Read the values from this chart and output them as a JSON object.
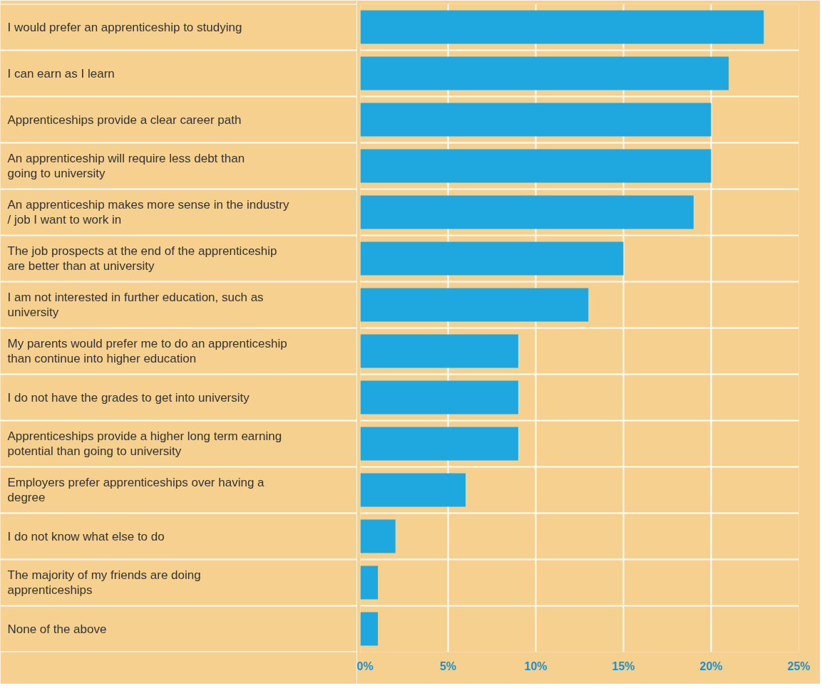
{
  "chart_data": {
    "type": "bar",
    "orientation": "horizontal",
    "categories": [
      "I would prefer an apprenticeship to studying",
      "I can earn as I learn",
      "Apprenticeships provide a clear career path",
      "An apprenticeship will require less debt than going to university",
      "An apprenticeship makes more sense in the industry / job I want to work in",
      "The job prospects at the end of the apprenticeship are better than at university",
      "I am not interested in further education, such as university",
      "My parents would prefer me to do an apprenticeship than continue into higher education",
      "I do not have the grades to get into university",
      "Apprenticeships provide a higher long term earning potential than going to university",
      "Employers prefer apprenticeships over having a degree",
      "I do not know what else to do",
      "The majority of my friends are doing apprenticeships",
      "None of the above"
    ],
    "values": [
      23,
      21,
      20,
      20,
      19,
      15,
      13,
      9,
      9,
      9,
      6,
      2,
      1,
      1
    ],
    "color": "#1fa8e0",
    "xlim": [
      0,
      25
    ],
    "xticks": [
      {
        "value": 0,
        "label": "0%"
      },
      {
        "value": 5,
        "label": "5%"
      },
      {
        "value": 10,
        "label": "10%"
      },
      {
        "value": 15,
        "label": "15%"
      },
      {
        "value": 20,
        "label": "20%"
      },
      {
        "value": 25,
        "label": "25%"
      }
    ],
    "grid": true
  }
}
